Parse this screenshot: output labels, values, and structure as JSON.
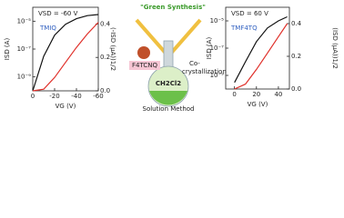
{
  "chart_data": [
    {
      "type": "line",
      "log_y": true,
      "x_label": "VG (V)",
      "y_label": "ISD (A)",
      "y2_label": "(-ISD (μA))1/2",
      "annotations": [
        "VSD = -60 V",
        "TMIQ"
      ],
      "x": [
        0,
        -10,
        -20,
        -30,
        -40,
        -50,
        -60
      ],
      "xlim": [
        0,
        -60
      ],
      "xticks": [
        0,
        -20,
        -40,
        -60
      ],
      "ylim": [
        1e-10,
        0.0001
      ],
      "yticks": [
        {
          "value": 1e-05,
          "label": "10⁻⁵"
        },
        {
          "value": 1e-07,
          "label": "10⁻⁷"
        },
        {
          "value": 1e-09,
          "label": "10⁻⁹"
        }
      ],
      "y2lim": [
        0,
        0.5
      ],
      "y2ticks": [
        {
          "value": 0,
          "label": "0.0"
        },
        {
          "value": 0.2,
          "label": "0.2"
        },
        {
          "value": 0.4,
          "label": "0.4"
        }
      ],
      "series": [
        {
          "color": "#111111",
          "values": [
            1e-10,
            3e-08,
            1e-06,
            6e-06,
            1.5e-05,
            2.5e-05,
            3e-05
          ]
        },
        {
          "color": "#e0302a",
          "axis": "y2",
          "values": [
            0,
            0.01,
            0.08,
            0.17,
            0.26,
            0.34,
            0.41
          ]
        }
      ]
    },
    {
      "type": "line",
      "log_y": true,
      "x_label": "VG (V)",
      "y_label": "ISD (A)",
      "y2_label": "(ISD (μA))1/2",
      "annotations": [
        "VSD = 60 V",
        "TMF4TQ"
      ],
      "x": [
        0,
        10,
        20,
        30,
        40,
        48
      ],
      "xlim": [
        -8,
        50
      ],
      "xticks": [
        0,
        20,
        40
      ],
      "ylim": [
        1e-10,
        0.0001
      ],
      "yticks": [
        {
          "value": 1e-05,
          "label": "10⁻⁵"
        },
        {
          "value": 1e-07,
          "label": "10⁻⁷"
        },
        {
          "value": 1e-09,
          "label": "10⁻⁹"
        }
      ],
      "y2lim": [
        0,
        0.5
      ],
      "y2ticks": [
        {
          "value": 0,
          "label": "0.0"
        },
        {
          "value": 0.2,
          "label": "0.2"
        },
        {
          "value": 0.4,
          "label": "0.4"
        }
      ],
      "series": [
        {
          "color": "#111111",
          "values": [
            3e-10,
            1e-08,
            3e-07,
            3e-06,
            1e-05,
            2e-05
          ]
        },
        {
          "color": "#e0302a",
          "axis": "y2",
          "values": [
            0,
            0.03,
            0.12,
            0.22,
            0.32,
            0.4
          ]
        }
      ]
    }
  ],
  "diagram": {
    "title": "\"Green Synthesis\"",
    "reagent": "F4TCNQ",
    "solvent": "CH2Cl2",
    "process": [
      "Co-",
      "crystallization"
    ],
    "caption": "Solution Method"
  }
}
